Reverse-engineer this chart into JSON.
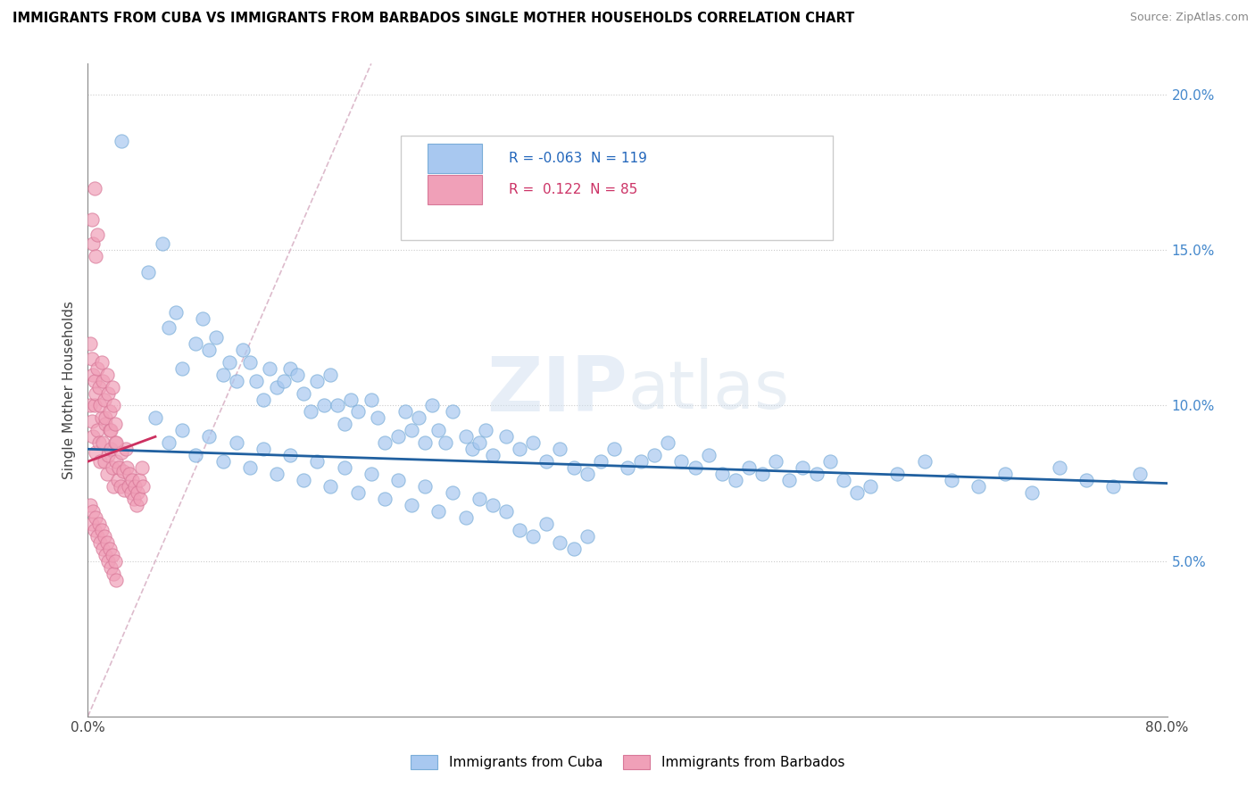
{
  "title": "IMMIGRANTS FROM CUBA VS IMMIGRANTS FROM BARBADOS SINGLE MOTHER HOUSEHOLDS CORRELATION CHART",
  "source": "Source: ZipAtlas.com",
  "ylabel": "Single Mother Households",
  "xlim": [
    0.0,
    0.8
  ],
  "ylim": [
    0.0,
    0.21
  ],
  "yticks": [
    0.05,
    0.1,
    0.15,
    0.2
  ],
  "ytick_labels": [
    "5.0%",
    "10.0%",
    "15.0%",
    "20.0%"
  ],
  "watermark_text": "ZIPatlas",
  "cuba_color": "#a8c8f0",
  "cuba_edge_color": "#7aadd8",
  "barbados_color": "#f0a0b8",
  "barbados_edge_color": "#d87898",
  "cuba_line_color": "#2060a0",
  "barbados_line_color": "#cc3060",
  "diag_line_color": "#ddbbcc",
  "cuba_R": "-0.063",
  "cuba_N": "119",
  "barbados_R": "0.122",
  "barbados_N": "85",
  "legend_label_cuba": "Immigrants from Cuba",
  "legend_label_barbados": "Immigrants from Barbados",
  "cuba_line_x0": 0.0,
  "cuba_line_y0": 0.086,
  "cuba_line_x1": 0.8,
  "cuba_line_y1": 0.075,
  "barbados_line_x0": 0.0,
  "barbados_line_y0": 0.082,
  "barbados_line_x1": 0.05,
  "barbados_line_y1": 0.09,
  "diag_line_x0": 0.0,
  "diag_line_y0": 0.0,
  "diag_line_x1": 0.21,
  "diag_line_y1": 0.21,
  "cuba_scatter_x": [
    0.025,
    0.045,
    0.055,
    0.06,
    0.065,
    0.07,
    0.08,
    0.085,
    0.09,
    0.095,
    0.1,
    0.105,
    0.11,
    0.115,
    0.12,
    0.125,
    0.13,
    0.135,
    0.14,
    0.145,
    0.15,
    0.155,
    0.16,
    0.165,
    0.17,
    0.175,
    0.18,
    0.185,
    0.19,
    0.195,
    0.2,
    0.21,
    0.215,
    0.22,
    0.23,
    0.235,
    0.24,
    0.245,
    0.25,
    0.255,
    0.26,
    0.265,
    0.27,
    0.28,
    0.285,
    0.29,
    0.295,
    0.3,
    0.31,
    0.32,
    0.33,
    0.34,
    0.35,
    0.36,
    0.37,
    0.38,
    0.39,
    0.4,
    0.41,
    0.42,
    0.43,
    0.44,
    0.45,
    0.46,
    0.47,
    0.48,
    0.49,
    0.5,
    0.51,
    0.52,
    0.53,
    0.54,
    0.55,
    0.56,
    0.57,
    0.58,
    0.6,
    0.62,
    0.64,
    0.66,
    0.68,
    0.7,
    0.72,
    0.74,
    0.76,
    0.78,
    0.05,
    0.06,
    0.07,
    0.08,
    0.09,
    0.1,
    0.11,
    0.12,
    0.13,
    0.14,
    0.15,
    0.16,
    0.17,
    0.18,
    0.19,
    0.2,
    0.21,
    0.22,
    0.23,
    0.24,
    0.25,
    0.26,
    0.27,
    0.28,
    0.29,
    0.3,
    0.31,
    0.32,
    0.33,
    0.34,
    0.35,
    0.36,
    0.37
  ],
  "cuba_scatter_y": [
    0.185,
    0.143,
    0.152,
    0.125,
    0.13,
    0.112,
    0.12,
    0.128,
    0.118,
    0.122,
    0.11,
    0.114,
    0.108,
    0.118,
    0.114,
    0.108,
    0.102,
    0.112,
    0.106,
    0.108,
    0.112,
    0.11,
    0.104,
    0.098,
    0.108,
    0.1,
    0.11,
    0.1,
    0.094,
    0.102,
    0.098,
    0.102,
    0.096,
    0.088,
    0.09,
    0.098,
    0.092,
    0.096,
    0.088,
    0.1,
    0.092,
    0.088,
    0.098,
    0.09,
    0.086,
    0.088,
    0.092,
    0.084,
    0.09,
    0.086,
    0.088,
    0.082,
    0.086,
    0.08,
    0.078,
    0.082,
    0.086,
    0.08,
    0.082,
    0.084,
    0.088,
    0.082,
    0.08,
    0.084,
    0.078,
    0.076,
    0.08,
    0.078,
    0.082,
    0.076,
    0.08,
    0.078,
    0.082,
    0.076,
    0.072,
    0.074,
    0.078,
    0.082,
    0.076,
    0.074,
    0.078,
    0.072,
    0.08,
    0.076,
    0.074,
    0.078,
    0.096,
    0.088,
    0.092,
    0.084,
    0.09,
    0.082,
    0.088,
    0.08,
    0.086,
    0.078,
    0.084,
    0.076,
    0.082,
    0.074,
    0.08,
    0.072,
    0.078,
    0.07,
    0.076,
    0.068,
    0.074,
    0.066,
    0.072,
    0.064,
    0.07,
    0.068,
    0.066,
    0.06,
    0.058,
    0.062,
    0.056,
    0.054,
    0.058
  ],
  "barbados_scatter_x": [
    0.002,
    0.003,
    0.004,
    0.005,
    0.006,
    0.007,
    0.008,
    0.009,
    0.01,
    0.011,
    0.012,
    0.013,
    0.014,
    0.015,
    0.016,
    0.017,
    0.018,
    0.019,
    0.02,
    0.021,
    0.022,
    0.023,
    0.024,
    0.025,
    0.026,
    0.027,
    0.028,
    0.029,
    0.03,
    0.031,
    0.032,
    0.033,
    0.034,
    0.035,
    0.036,
    0.037,
    0.038,
    0.039,
    0.04,
    0.041,
    0.002,
    0.003,
    0.004,
    0.005,
    0.006,
    0.007,
    0.008,
    0.009,
    0.01,
    0.011,
    0.012,
    0.013,
    0.014,
    0.015,
    0.016,
    0.017,
    0.018,
    0.019,
    0.02,
    0.021,
    0.002,
    0.003,
    0.004,
    0.005,
    0.006,
    0.007,
    0.008,
    0.009,
    0.01,
    0.011,
    0.012,
    0.013,
    0.014,
    0.015,
    0.016,
    0.017,
    0.018,
    0.019,
    0.02,
    0.021,
    0.003,
    0.004,
    0.005,
    0.006,
    0.007
  ],
  "barbados_scatter_y": [
    0.1,
    0.095,
    0.09,
    0.1,
    0.085,
    0.092,
    0.088,
    0.082,
    0.096,
    0.088,
    0.082,
    0.094,
    0.078,
    0.084,
    0.092,
    0.086,
    0.08,
    0.074,
    0.088,
    0.082,
    0.076,
    0.08,
    0.074,
    0.085,
    0.079,
    0.073,
    0.086,
    0.08,
    0.074,
    0.078,
    0.072,
    0.076,
    0.07,
    0.074,
    0.068,
    0.072,
    0.076,
    0.07,
    0.08,
    0.074,
    0.12,
    0.115,
    0.11,
    0.108,
    0.104,
    0.112,
    0.106,
    0.1,
    0.114,
    0.108,
    0.102,
    0.096,
    0.11,
    0.104,
    0.098,
    0.092,
    0.106,
    0.1,
    0.094,
    0.088,
    0.068,
    0.062,
    0.066,
    0.06,
    0.064,
    0.058,
    0.062,
    0.056,
    0.06,
    0.054,
    0.058,
    0.052,
    0.056,
    0.05,
    0.054,
    0.048,
    0.052,
    0.046,
    0.05,
    0.044,
    0.16,
    0.152,
    0.17,
    0.148,
    0.155
  ]
}
